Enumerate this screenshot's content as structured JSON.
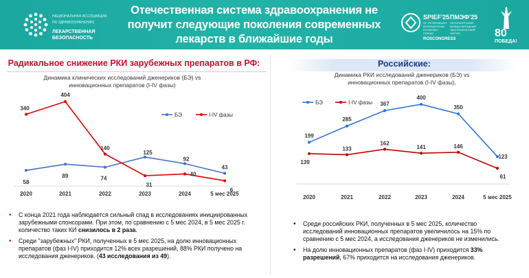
{
  "header": {
    "title": "Отечественная система здравоохранения не получит следующие поколения современных лекарств в ближайшие годы",
    "logo_left_small": "НАЦИОНАЛЬНАЯ АССОЦИАЦИЯ ПО ЗДРАВООХРАНЕНИЮ",
    "logo_left_main": "ЛЕКАРСТВЕННАЯ БЕЗОПАСНОСТЬ",
    "spief_en": "SPIEF'25",
    "spief_en_small": "ST. PETERSBURG INTERNATIONAL ECONOMIC FORUM",
    "spief_ru": "ПМЭФ'25",
    "spief_ru_small": "ПЕТЕРБУРГСКИЙ МЕЖДУНАРОДНЫЙ ЭКОНОМИЧЕСКИЙ ФОРУМ",
    "roscongress": "ROSCONGRESS",
    "victory_num": "80",
    "victory_word": "ПОБЕДА!",
    "accent_color": "#1aa7a0"
  },
  "left": {
    "heading": "Радикальное снижение РКИ зарубежных препаратов в РФ:",
    "subtitle_line1": "Динамика клинических  исследований дженериков (БЭ) vs",
    "subtitle_line2": "инновационных препаратов (I-IV фазы)",
    "bullets": [
      {
        "parts": [
          {
            "t": "С конца 2021 года наблюдается сильный спад в исследованиях инициированных зарубежными спонсорами. При этом, по сравнению с 5 мес 2024, в 5 мес 2025 г. количество таких КИ ",
            "b": false
          },
          {
            "t": "снизилось в 2 раза",
            "b": true
          },
          {
            "t": ".",
            "b": false
          }
        ]
      },
      {
        "parts": [
          {
            "t": "Среди \"зарубежных\" РКИ, полученных в 5 мес 2025, на долю инновационных препаратов (фаз I-IV)  приходится 12% всех разрешений, 88% РКИ получено на исследования дженериков. (",
            "b": false
          },
          {
            "t": "43 исследования из 49",
            "b": true
          },
          {
            "t": ").",
            "b": false
          }
        ]
      }
    ]
  },
  "right": {
    "heading": "Российские:",
    "subtitle_line1": "Динамика РКИ исследований дженериков (БЭ) vs",
    "subtitle_line2": "инновационных препаратов (I-IV фазы),",
    "bullets": [
      {
        "parts": [
          {
            "t": "Среди российских РКИ, полученных в 5 мес 2025, количество исследований инновационных препаратов увеличилось на 15% по сравнению с 5 мес 2024, а исследования дженериков не изменились.",
            "b": false
          }
        ]
      },
      {
        "parts": [
          {
            "t": "На долю инновационных препаратов (фаз I-IV) приходится ",
            "b": false
          },
          {
            "t": "33% разрешений",
            "b": true
          },
          {
            "t": ", 67% приходится на исследования дженериков.",
            "b": false
          }
        ]
      }
    ]
  },
  "chart_data": [
    {
      "type": "line",
      "x": [
        "2020",
        "2021",
        "2022",
        "2023",
        "2024",
        "5 мес 2025"
      ],
      "series": [
        {
          "name": "БЭ",
          "color": "#4472c4",
          "values": [
            58,
            89,
            74,
            125,
            92,
            43
          ]
        },
        {
          "name": "I-IV фазы",
          "color": "#e00000",
          "values": [
            340,
            404,
            140,
            31,
            40,
            6
          ]
        }
      ],
      "legend": "top-center",
      "grid": false
    },
    {
      "type": "line",
      "x": [
        "2020",
        "2021",
        "2022",
        "2023",
        "2024",
        "5 мес 2025"
      ],
      "series": [
        {
          "name": "БЭ",
          "color": "#2e75d6",
          "values": [
            199,
            285,
            367,
            400,
            350,
            123
          ]
        },
        {
          "name": "I-IV фазы",
          "color": "#c00000",
          "values": [
            139,
            133,
            162,
            141,
            146,
            61
          ]
        }
      ],
      "legend": "top-left",
      "grid": false
    }
  ]
}
